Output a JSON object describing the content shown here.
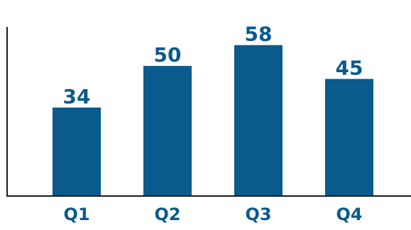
{
  "chart_data": {
    "type": "bar",
    "categories": [
      "Q1",
      "Q2",
      "Q3",
      "Q4"
    ],
    "values": [
      34,
      50,
      58,
      45
    ],
    "ylim": [
      0,
      65
    ],
    "grid": false,
    "legend": "none",
    "colors": {
      "bar": "#0b5a8c",
      "label": "#0b5a8c",
      "axis": "#1a1a1a",
      "tick_label": "#0b5a8c"
    }
  }
}
